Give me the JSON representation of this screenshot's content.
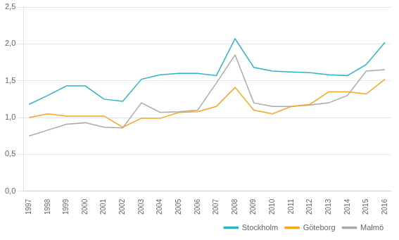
{
  "chart_data": {
    "type": "line",
    "x": [
      1997,
      1998,
      1999,
      2000,
      2001,
      2002,
      2003,
      2004,
      2005,
      2006,
      2007,
      2008,
      2009,
      2010,
      2011,
      2012,
      2013,
      2014,
      2015,
      2016
    ],
    "series": [
      {
        "name": "Stockholm",
        "color": "#2BB5C8",
        "values": [
          1.18,
          1.3,
          1.43,
          1.43,
          1.25,
          1.22,
          1.52,
          1.58,
          1.6,
          1.6,
          1.57,
          2.07,
          1.68,
          1.63,
          1.62,
          1.61,
          1.58,
          1.57,
          1.72,
          2.02
        ]
      },
      {
        "name": "Göteborg",
        "color": "#F5A623",
        "values": [
          1.0,
          1.05,
          1.02,
          1.02,
          1.02,
          0.87,
          0.99,
          0.99,
          1.07,
          1.08,
          1.15,
          1.41,
          1.1,
          1.05,
          1.15,
          1.18,
          1.35,
          1.35,
          1.32,
          1.52
        ]
      },
      {
        "name": "Malmö",
        "color": "#AAAAAA",
        "values": [
          0.75,
          0.83,
          0.91,
          0.93,
          0.87,
          0.86,
          1.2,
          1.07,
          1.08,
          1.1,
          1.47,
          1.85,
          1.2,
          1.15,
          1.15,
          1.17,
          1.2,
          1.3,
          1.63,
          1.65
        ]
      }
    ],
    "xlim": [
      1996.7,
      2016.3
    ],
    "xticks": [
      1997,
      1998,
      1999,
      2000,
      2001,
      2002,
      2003,
      2004,
      2005,
      2006,
      2007,
      2008,
      2009,
      2010,
      2011,
      2012,
      2013,
      2014,
      2015,
      2016
    ],
    "ylim": [
      0.0,
      2.5
    ],
    "yticks": [
      {
        "value": 0.0,
        "label": "0,0"
      },
      {
        "value": 0.5,
        "label": "0,5"
      },
      {
        "value": 1.0,
        "label": "1,0"
      },
      {
        "value": 1.5,
        "label": "1,5"
      },
      {
        "value": 2.0,
        "label": "2,0"
      },
      {
        "value": 2.5,
        "label": "2,5"
      }
    ],
    "grid": true,
    "legend": "lower right"
  }
}
